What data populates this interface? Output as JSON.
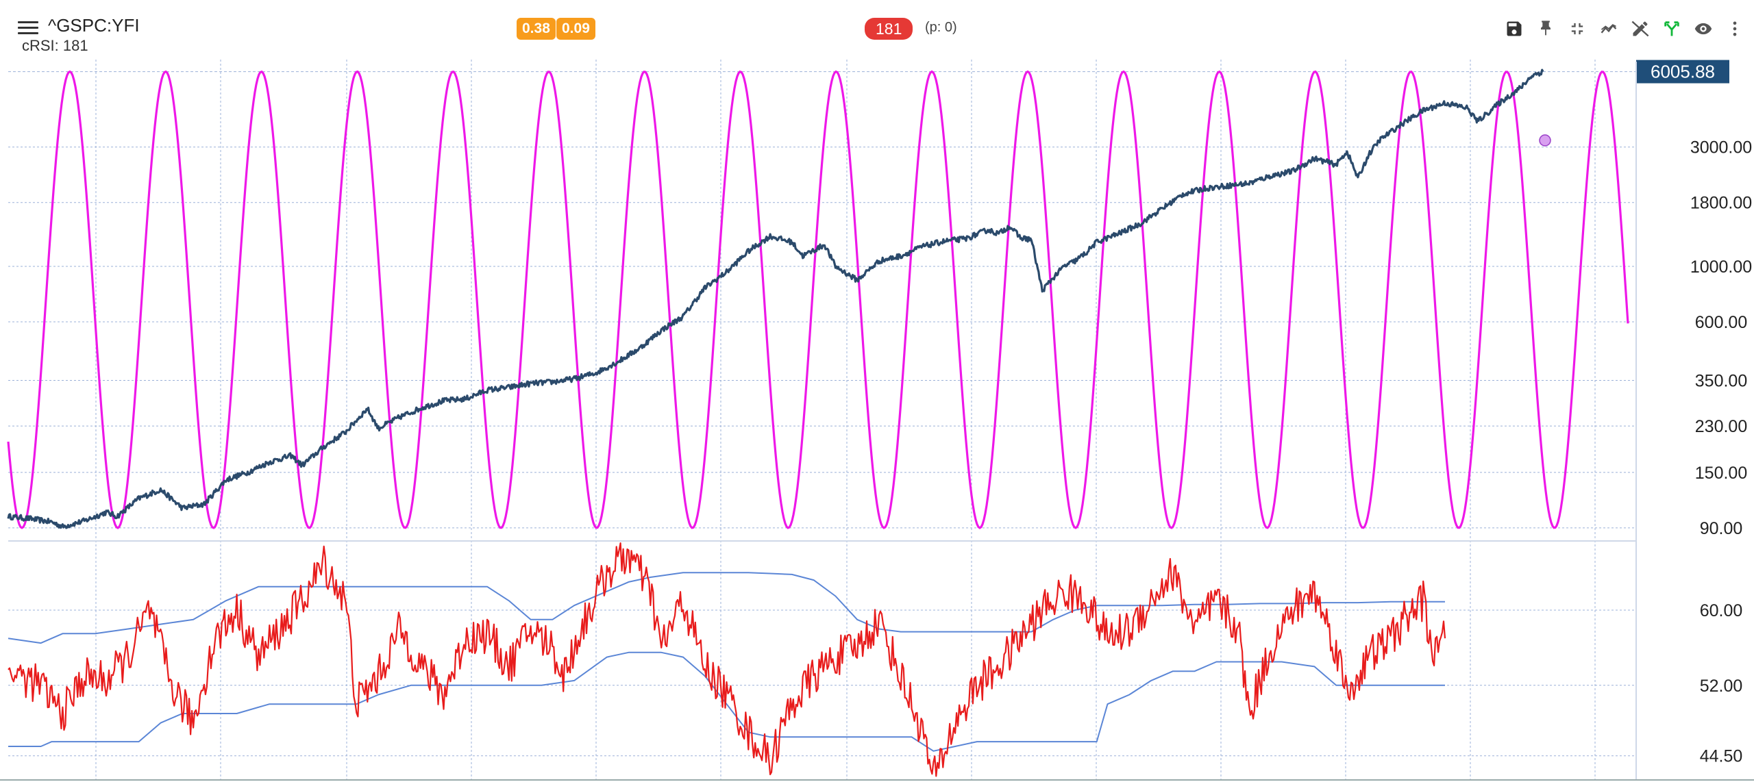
{
  "header": {
    "symbol": "^GSPC:YFI",
    "indicator_label": "cRSI: 181",
    "badges": [
      "0.38",
      "0.09"
    ],
    "cycle_badge": "181",
    "p_value": "(p: 0)"
  },
  "toolbar": {
    "icons": [
      "save-icon",
      "pin-icon",
      "collapse-icon",
      "trend-icon",
      "edit-icon",
      "fork-icon",
      "eye-icon",
      "more-icon"
    ]
  },
  "colors": {
    "price_line": "#2b4a6b",
    "sine_wave": "#ee18e8",
    "crsi_line": "#e81c1c",
    "bands": "#5b86d6",
    "grid": "#9bb0d8",
    "price_box": "#1f4e79"
  },
  "chart_data": [
    {
      "type": "line",
      "scale": "log",
      "ylim": [
        85,
        6300
      ],
      "yticks": [
        "6005.88",
        "3000.00",
        "1800.00",
        "1000.00",
        "600.00",
        "350.00",
        "230.00",
        "150.00",
        "90.00"
      ],
      "last_price": "6005.88",
      "series": [
        {
          "role": "price",
          "points": [
            [
              0,
              100
            ],
            [
              2,
              98
            ],
            [
              4,
              95
            ],
            [
              5,
              91
            ],
            [
              7,
              96
            ],
            [
              9,
              104
            ],
            [
              10,
              100
            ],
            [
              12,
              118
            ],
            [
              14,
              128
            ],
            [
              16,
              108
            ],
            [
              18,
              112
            ],
            [
              20,
              140
            ],
            [
              22,
              150
            ],
            [
              24,
              165
            ],
            [
              26,
              175
            ],
            [
              27,
              160
            ],
            [
              29,
              190
            ],
            [
              31,
              218
            ],
            [
              33,
              270
            ],
            [
              34,
              225
            ],
            [
              36,
              250
            ],
            [
              38,
              272
            ],
            [
              40,
              290
            ],
            [
              42,
              295
            ],
            [
              44,
              320
            ],
            [
              46,
              328
            ],
            [
              48,
              340
            ],
            [
              50,
              345
            ],
            [
              52,
              355
            ],
            [
              54,
              375
            ],
            [
              56,
              415
            ],
            [
              58,
              470
            ],
            [
              60,
              555
            ],
            [
              62,
              630
            ],
            [
              64,
              820
            ],
            [
              66,
              950
            ],
            [
              68,
              1150
            ],
            [
              70,
              1320
            ],
            [
              72,
              1250
            ],
            [
              73,
              1100
            ],
            [
              75,
              1220
            ],
            [
              76,
              1000
            ],
            [
              78,
              880
            ],
            [
              80,
              1050
            ],
            [
              82,
              1100
            ],
            [
              84,
              1200
            ],
            [
              86,
              1260
            ],
            [
              88,
              1290
            ],
            [
              90,
              1400
            ],
            [
              91,
              1350
            ],
            [
              92,
              1450
            ],
            [
              93,
              1300
            ],
            [
              94,
              1280
            ],
            [
              95,
              800
            ],
            [
              96,
              900
            ],
            [
              97,
              1000
            ],
            [
              98,
              1050
            ],
            [
              99,
              1130
            ],
            [
              100,
              1250
            ],
            [
              102,
              1350
            ],
            [
              104,
              1480
            ],
            [
              106,
              1700
            ],
            [
              108,
              1950
            ],
            [
              110,
              2050
            ],
            [
              112,
              2100
            ],
            [
              114,
              2150
            ],
            [
              116,
              2300
            ],
            [
              118,
              2400
            ],
            [
              120,
              2700
            ],
            [
              122,
              2550
            ],
            [
              123,
              2880
            ],
            [
              124,
              2250
            ],
            [
              125,
              2800
            ],
            [
              126,
              3200
            ],
            [
              128,
              3700
            ],
            [
              130,
              4200
            ],
            [
              132,
              4500
            ],
            [
              134,
              4300
            ],
            [
              135,
              3800
            ],
            [
              137,
              4500
            ],
            [
              139,
              5200
            ],
            [
              140,
              5800
            ],
            [
              141,
              6005.88
            ]
          ]
        },
        {
          "role": "cycle",
          "period": 8.8,
          "points": "sine wave oscillating between 90 and 6005.88"
        }
      ]
    },
    {
      "type": "line",
      "ylim": [
        42,
        67
      ],
      "yticks": [
        "60.00",
        "52.00",
        "44.50"
      ],
      "series": [
        {
          "role": "crsi",
          "points": [
            [
              0,
              53.5
            ],
            [
              3,
              52
            ],
            [
              5,
              49
            ],
            [
              7,
              53
            ],
            [
              9,
              52.5
            ],
            [
              11,
              55
            ],
            [
              13,
              60
            ],
            [
              15,
              52
            ],
            [
              17,
              48
            ],
            [
              19,
              57
            ],
            [
              21,
              60
            ],
            [
              23,
              55
            ],
            [
              25,
              58
            ],
            [
              27,
              61
            ],
            [
              29,
              65
            ],
            [
              31,
              61
            ],
            [
              32,
              50
            ],
            [
              34,
              53
            ],
            [
              36,
              58
            ],
            [
              38,
              54
            ],
            [
              40,
              51
            ],
            [
              42,
              57
            ],
            [
              44,
              57.5
            ],
            [
              46,
              54
            ],
            [
              48,
              58
            ],
            [
              50,
              56
            ],
            [
              51,
              53
            ],
            [
              53,
              59
            ],
            [
              55,
              64
            ],
            [
              57,
              66
            ],
            [
              59,
              62
            ],
            [
              60,
              56
            ],
            [
              62,
              61
            ],
            [
              64,
              54
            ],
            [
              66,
              51
            ],
            [
              68,
              47
            ],
            [
              70,
              44
            ],
            [
              72,
              50
            ],
            [
              74,
              53
            ],
            [
              76,
              55
            ],
            [
              78,
              56
            ],
            [
              80,
              59
            ],
            [
              82,
              53
            ],
            [
              84,
              47
            ],
            [
              85,
              42
            ],
            [
              87,
              48
            ],
            [
              89,
              52
            ],
            [
              91,
              54
            ],
            [
              93,
              57
            ],
            [
              95,
              60
            ],
            [
              97,
              62
            ],
            [
              99,
              61
            ],
            [
              101,
              57
            ],
            [
              103,
              58
            ],
            [
              105,
              61
            ],
            [
              107,
              64
            ],
            [
              109,
              58
            ],
            [
              111,
              61
            ],
            [
              113,
              58
            ],
            [
              114,
              49
            ],
            [
              116,
              56
            ],
            [
              118,
              60
            ],
            [
              120,
              62
            ],
            [
              122,
              56
            ],
            [
              123,
              51
            ],
            [
              125,
              55
            ],
            [
              127,
              57
            ],
            [
              129,
              60
            ],
            [
              130,
              61
            ],
            [
              131,
              55
            ],
            [
              132,
              57
            ]
          ]
        },
        {
          "role": "upper-band",
          "points": [
            [
              0,
              57
            ],
            [
              3,
              56.5
            ],
            [
              5,
              57.5
            ],
            [
              8,
              57.5
            ],
            [
              11,
              58
            ],
            [
              14,
              58.5
            ],
            [
              17,
              59
            ],
            [
              20,
              61
            ],
            [
              23,
              62.5
            ],
            [
              26,
              62.5
            ],
            [
              29,
              62.5
            ],
            [
              31,
              62.5
            ],
            [
              33,
              62.5
            ],
            [
              36,
              62.5
            ],
            [
              39,
              62.5
            ],
            [
              42,
              62.5
            ],
            [
              44,
              62.5
            ],
            [
              46,
              61
            ],
            [
              48,
              59
            ],
            [
              50,
              59
            ],
            [
              52,
              60.5
            ],
            [
              55,
              62
            ],
            [
              57,
              63
            ],
            [
              59,
              63.5
            ],
            [
              62,
              64
            ],
            [
              65,
              64
            ],
            [
              68,
              64
            ],
            [
              70,
              63.9
            ],
            [
              72,
              63.8
            ],
            [
              74,
              63.2
            ],
            [
              76,
              61.5
            ],
            [
              78,
              59
            ],
            [
              80,
              58
            ],
            [
              82,
              57.7
            ],
            [
              85,
              57.7
            ],
            [
              88,
              57.7
            ],
            [
              91,
              57.7
            ],
            [
              94,
              57.7
            ],
            [
              96,
              59
            ],
            [
              98,
              60
            ],
            [
              100,
              60.5
            ],
            [
              103,
              60.5
            ],
            [
              106,
              60.5
            ],
            [
              109,
              60.6
            ],
            [
              112,
              60.6
            ],
            [
              115,
              60.7
            ],
            [
              118,
              60.7
            ],
            [
              121,
              60.8
            ],
            [
              124,
              60.8
            ],
            [
              127,
              60.9
            ],
            [
              130,
              60.9
            ],
            [
              132,
              60.9
            ]
          ]
        },
        {
          "role": "lower-band",
          "points": [
            [
              0,
              45.5
            ],
            [
              3,
              45.5
            ],
            [
              4,
              46
            ],
            [
              8,
              46
            ],
            [
              12,
              46
            ],
            [
              14,
              48
            ],
            [
              16,
              49
            ],
            [
              18,
              49
            ],
            [
              21,
              49
            ],
            [
              24,
              50
            ],
            [
              27,
              50
            ],
            [
              30,
              50
            ],
            [
              32,
              50
            ],
            [
              34,
              51
            ],
            [
              37,
              52
            ],
            [
              40,
              52
            ],
            [
              43,
              52
            ],
            [
              46,
              52
            ],
            [
              49,
              52
            ],
            [
              52,
              52.5
            ],
            [
              55,
              55
            ],
            [
              57,
              55.5
            ],
            [
              60,
              55.5
            ],
            [
              62,
              55
            ],
            [
              64,
              53
            ],
            [
              66,
              50
            ],
            [
              68,
              47
            ],
            [
              70,
              46.5
            ],
            [
              72,
              46.5
            ],
            [
              75,
              46.5
            ],
            [
              78,
              46.5
            ],
            [
              81,
              46.5
            ],
            [
              83,
              46.5
            ],
            [
              85,
              45
            ],
            [
              87,
              45.5
            ],
            [
              89,
              46
            ],
            [
              92,
              46
            ],
            [
              95,
              46
            ],
            [
              98,
              46
            ],
            [
              100,
              46
            ],
            [
              101,
              50
            ],
            [
              103,
              51
            ],
            [
              105,
              52.5
            ],
            [
              107,
              53.5
            ],
            [
              109,
              53.5
            ],
            [
              111,
              54.5
            ],
            [
              114,
              54.5
            ],
            [
              117,
              54.5
            ],
            [
              120,
              54
            ],
            [
              122,
              52
            ],
            [
              124,
              52
            ],
            [
              127,
              52
            ],
            [
              130,
              52
            ],
            [
              132,
              52
            ]
          ]
        }
      ]
    }
  ]
}
